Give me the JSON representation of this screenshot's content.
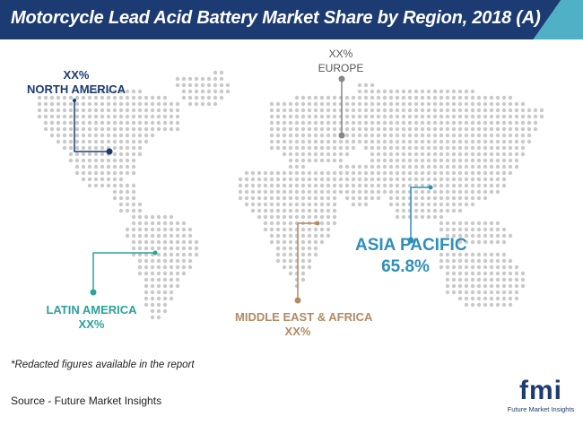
{
  "title": "Motorcycle Lead Acid Battery Market Share by Region, 2018 (A)",
  "regions": {
    "north_america": {
      "value": "XX%",
      "name": "NORTH AMERICA",
      "color": "#1d3b73"
    },
    "europe": {
      "value": "XX%",
      "name": "EUROPE",
      "color": "#777777"
    },
    "latin_america": {
      "name": "LATIN AMERICA",
      "value": "XX%",
      "color": "#2ba29a"
    },
    "mea": {
      "name": "MIDDLE EAST & AFRICA",
      "value": "XX%",
      "color": "#b28a63"
    },
    "asia_pacific": {
      "name": "ASIA PACIFIC",
      "value": "65.8%",
      "color": "#2e8fba"
    }
  },
  "footnote": "*Redacted figures available in the report",
  "source": "Source - Future Market Insights",
  "logo": {
    "mark": "fmi",
    "text": "Future Market Insights"
  },
  "colors": {
    "header": "#1d3b73",
    "accent": "#4fb0c6",
    "map_dots": "#c9c9c9"
  }
}
